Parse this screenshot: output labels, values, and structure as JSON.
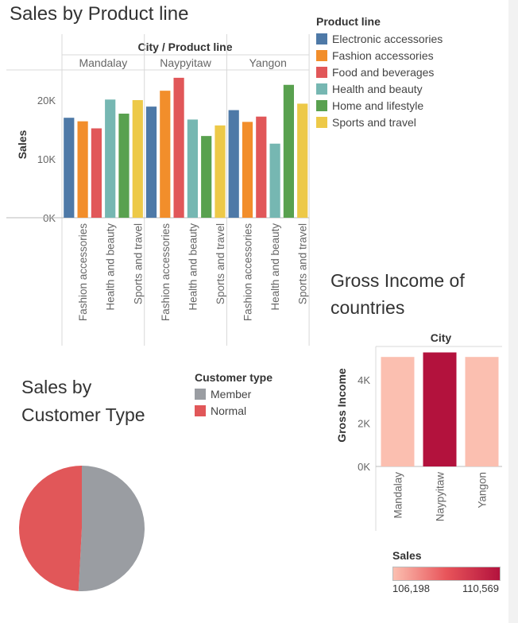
{
  "sales_by_product": {
    "title": "Sales by Product line",
    "header": "City / Product line",
    "ylabel": "Sales",
    "yticks": [
      "0K",
      "10K",
      "20K"
    ],
    "legend_title": "Product line",
    "legend": [
      {
        "name": "Electronic accessories",
        "color": "#4e79a7"
      },
      {
        "name": "Fashion accessories",
        "color": "#f28e2b"
      },
      {
        "name": "Food and beverages",
        "color": "#e15759"
      },
      {
        "name": "Health and beauty",
        "color": "#76b7b2"
      },
      {
        "name": "Home and lifestyle",
        "color": "#59a14f"
      },
      {
        "name": "Sports and travel",
        "color": "#edc948"
      }
    ],
    "axis_labels": [
      "Fashion accessories",
      "Health and beauty",
      "Sports and travel"
    ]
  },
  "gross_income": {
    "title": "Gross Income of countries",
    "header": "City",
    "ylabel": "Gross Income",
    "yticks": [
      "0K",
      "2K",
      "4K"
    ],
    "color_legend_title": "Sales",
    "color_min": "106,198",
    "color_max": "110,569"
  },
  "customer_type": {
    "title": "Sales by Customer Type",
    "legend_title": "Customer type",
    "legend": [
      {
        "name": "Member",
        "color": "#9a9da2"
      },
      {
        "name": "Normal",
        "color": "#e15759"
      }
    ]
  },
  "chart_data": [
    {
      "type": "bar",
      "title": "Sales by Product line",
      "xlabel": "City / Product line",
      "ylabel": "Sales",
      "ylim": [
        0,
        25000
      ],
      "groups": [
        "Mandalay",
        "Naypyitaw",
        "Yangon"
      ],
      "categories": [
        "Electronic accessories",
        "Fashion accessories",
        "Food and beverages",
        "Health and beauty",
        "Home and lifestyle",
        "Sports and travel"
      ],
      "series": [
        {
          "name": "Mandalay",
          "values": [
            17000,
            16400,
            15200,
            20100,
            17700,
            20000
          ]
        },
        {
          "name": "Naypyitaw",
          "values": [
            18900,
            21600,
            23800,
            16700,
            13900,
            15700
          ]
        },
        {
          "name": "Yangon",
          "values": [
            18300,
            16300,
            17200,
            12600,
            22600,
            19400
          ]
        }
      ]
    },
    {
      "type": "bar",
      "title": "Gross Income of countries",
      "xlabel": "City",
      "ylabel": "Gross Income",
      "ylim": [
        0,
        5300
      ],
      "categories": [
        "Mandalay",
        "Naypyitaw",
        "Yangon"
      ],
      "values": [
        5057,
        5266,
        5057
      ],
      "color_values": [
        106198,
        110569,
        106200
      ],
      "color_range": [
        106198,
        110569
      ]
    },
    {
      "type": "pie",
      "title": "Sales by Customer Type",
      "categories": [
        "Member",
        "Normal"
      ],
      "values": [
        164223,
        158743
      ]
    }
  ]
}
